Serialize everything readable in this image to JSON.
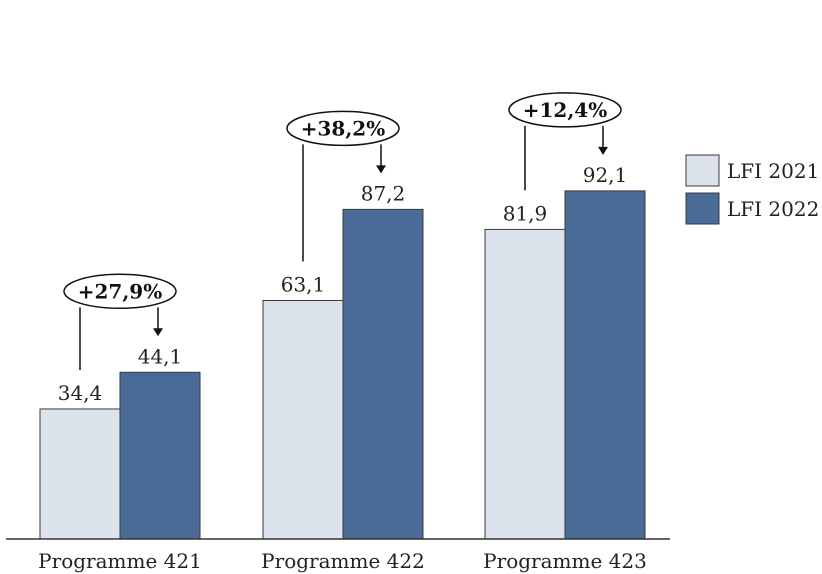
{
  "chart_data": {
    "type": "bar",
    "categories": [
      "Programme 421",
      "Programme 422",
      "Programme 423"
    ],
    "series": [
      {
        "name": "LFI 2021",
        "values": [
          34.4,
          63.1,
          81.9
        ],
        "labels": [
          "34,4",
          "63,1",
          "81,9"
        ],
        "color": "#dce3ec"
      },
      {
        "name": "LFI 2022",
        "values": [
          44.1,
          87.2,
          92.1
        ],
        "labels": [
          "44,1",
          "87,2",
          "92,1"
        ],
        "color": "#4a6a98"
      }
    ],
    "annotations": [
      "+27,9%",
      "+38,2%",
      "+12,4%"
    ],
    "ylim": [
      0,
      100
    ],
    "legend_position": "right",
    "grid": false
  }
}
